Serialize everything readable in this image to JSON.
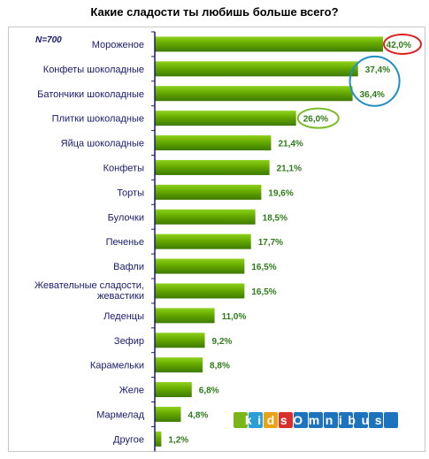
{
  "chart_data": {
    "type": "bar",
    "orientation": "horizontal",
    "title": "Какие сладости ты любишь больше всего?",
    "note": "N=700",
    "categories": [
      "Мороженое",
      "Конфеты шоколадные",
      "Батончики шоколадные",
      "Плитки шоколадные",
      "Яйца шоколадные",
      "Конфеты",
      "Торты",
      "Булочки",
      "Печенье",
      "Вафли",
      "Жевательные сладости, жевастики",
      "Леденцы",
      "Зефир",
      "Карамельки",
      "Желе",
      "Мармелад",
      "Другое"
    ],
    "values": [
      42.0,
      37.4,
      36.4,
      26.0,
      21.4,
      21.1,
      19.6,
      18.5,
      17.7,
      16.5,
      16.5,
      11.0,
      9.2,
      8.8,
      6.8,
      4.8,
      1.2
    ],
    "value_labels": [
      "42,0%",
      "37,4%",
      "36,4%",
      "26,0%",
      "21,4%",
      "21,1%",
      "19,6%",
      "18,5%",
      "17,7%",
      "16,5%",
      "16,5%",
      "11,0%",
      "9,2%",
      "8,8%",
      "6,8%",
      "4,8%",
      "1,2%"
    ],
    "xlim": [
      0,
      42
    ],
    "grid": false,
    "legend": "none",
    "highlights": [
      {
        "items": [
          "Мороженое"
        ],
        "shape": "ellipse",
        "color": "#e02020"
      },
      {
        "items": [
          "Конфеты шоколадные",
          "Батончики шоколадные"
        ],
        "shape": "ellipse",
        "color": "#1e8fc0"
      },
      {
        "items": [
          "Плитки шоколадные"
        ],
        "shape": "ellipse",
        "color": "#7dbb2a"
      }
    ]
  },
  "logo": {
    "text": "kidsOmnibus",
    "colors": [
      "#7cb518",
      "#2a9fd6",
      "#e8a317",
      "#d9302c"
    ]
  },
  "colors": {
    "bar": "#66aa00",
    "bar_dark": "#3d7a00",
    "axis": "#1a1a6e",
    "category_text": "#1a1a6e",
    "value_text": "#2e7d1a"
  }
}
